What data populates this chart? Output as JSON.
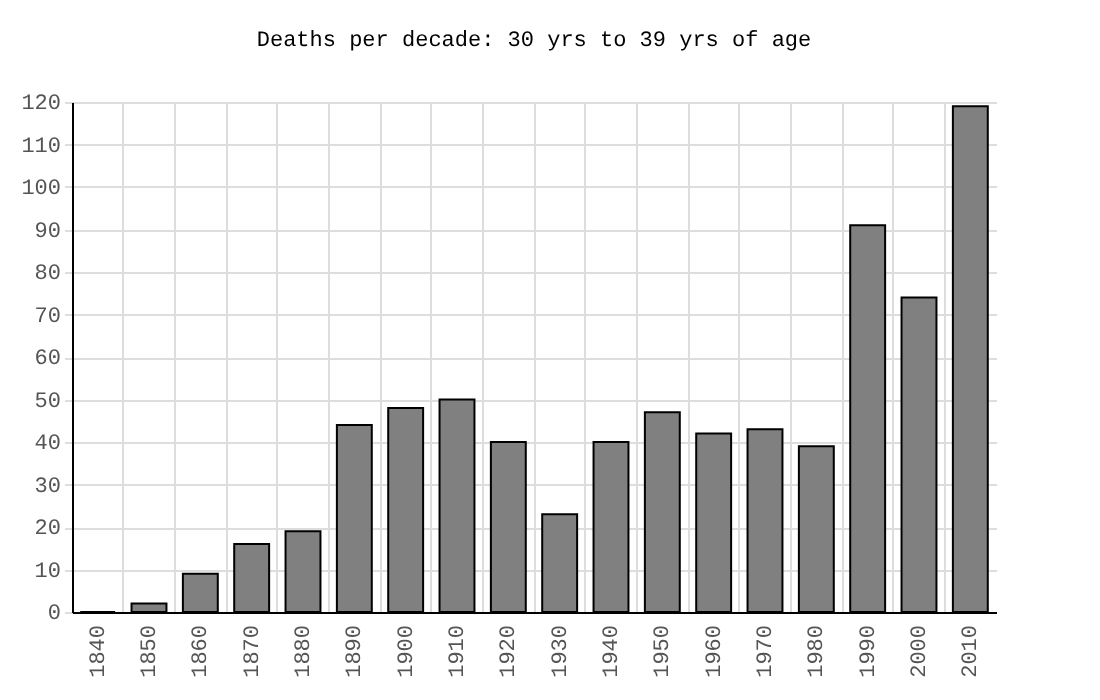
{
  "chart_data": {
    "type": "bar",
    "title": "Deaths per decade: 30 yrs to 39 yrs of age",
    "categories": [
      "1840",
      "1850",
      "1860",
      "1870",
      "1880",
      "1890",
      "1900",
      "1910",
      "1920",
      "1930",
      "1940",
      "1950",
      "1960",
      "1970",
      "1980",
      "1990",
      "2000",
      "2010"
    ],
    "values": [
      0,
      2,
      9,
      16,
      19,
      44,
      48,
      50,
      40,
      23,
      40,
      47,
      42,
      43,
      39,
      91,
      74,
      119
    ],
    "color": "#808080",
    "ylim": [
      0,
      120
    ],
    "yticks": [
      0,
      10,
      20,
      30,
      40,
      50,
      60,
      70,
      80,
      90,
      100,
      110,
      120
    ],
    "grid": true
  }
}
